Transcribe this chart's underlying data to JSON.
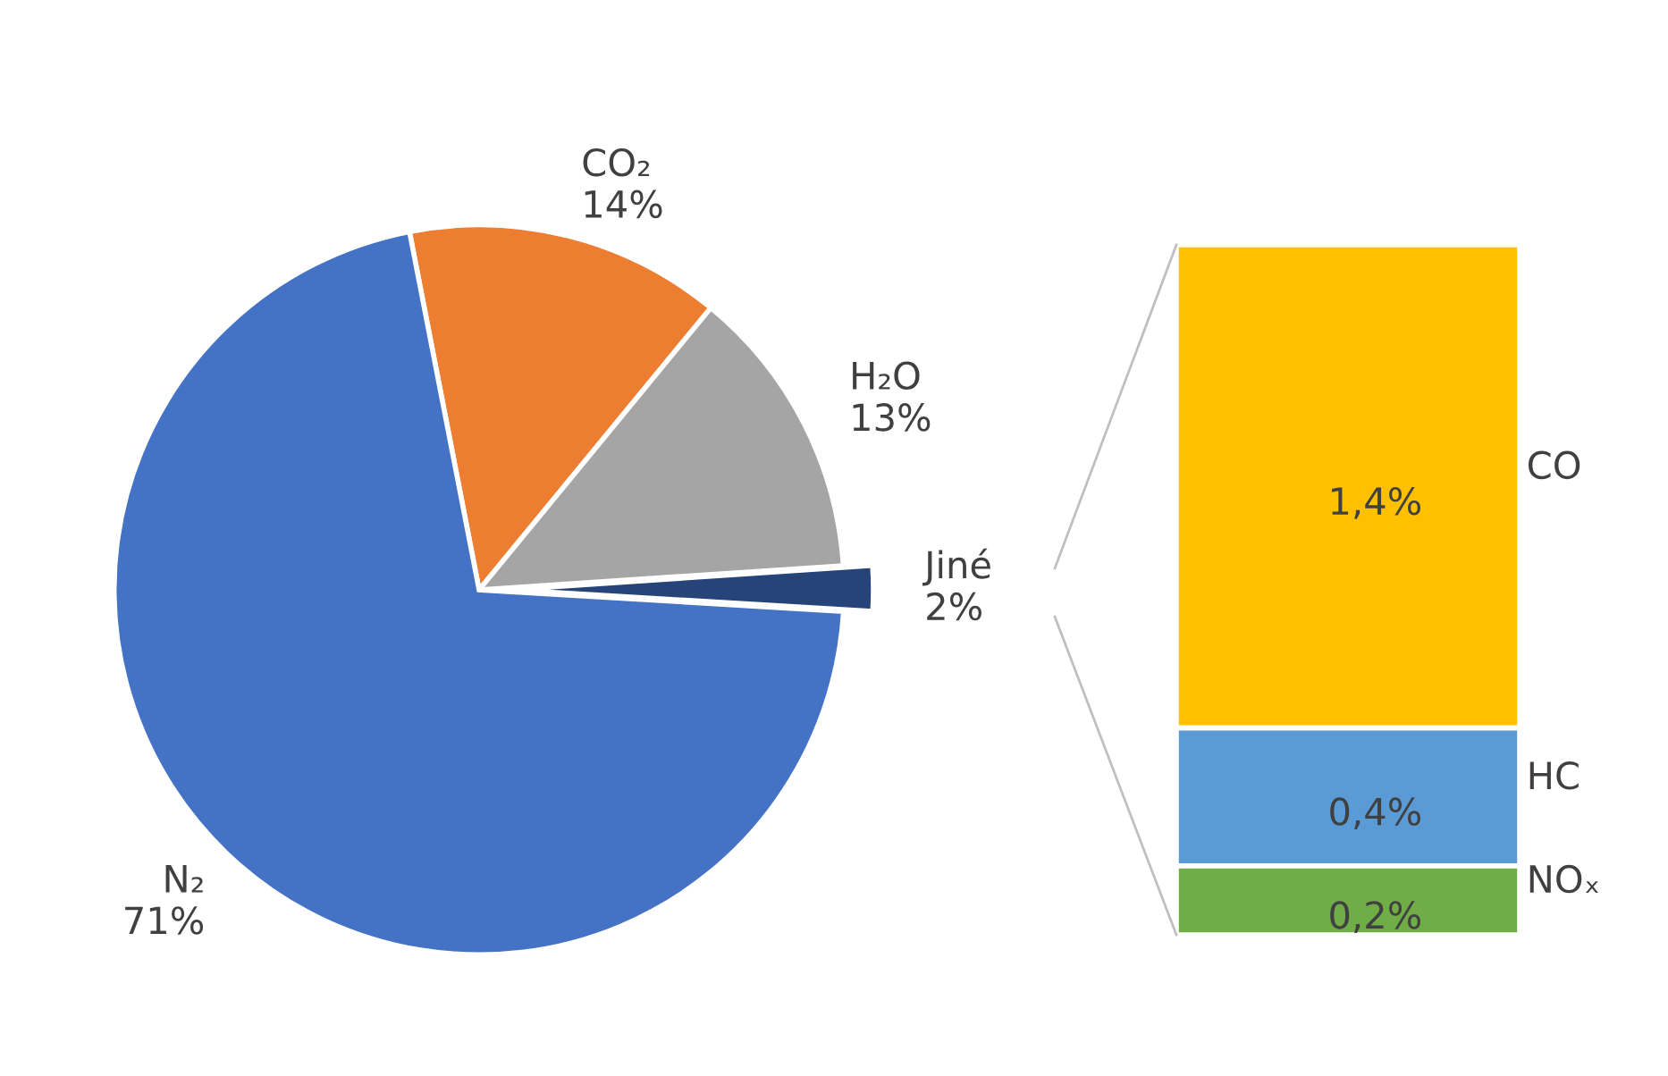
{
  "chart_data": [
    {
      "type": "pie",
      "categories": [
        "CO₂",
        "H₂O",
        "Jiné",
        "N₂"
      ],
      "values": [
        14,
        13,
        2,
        71
      ],
      "colors": [
        "#ed7d31",
        "#a5a5a5",
        "#264478",
        "#4472c4"
      ],
      "value_labels": [
        "14%",
        "13%",
        "2%",
        "71%"
      ]
    },
    {
      "type": "bar",
      "stacked": true,
      "categories": [
        null
      ],
      "series": [
        {
          "name": "NOₓ",
          "color": "#70ad47",
          "values": [
            0.2
          ],
          "value_labels": [
            "0,2%"
          ]
        },
        {
          "name": "HC",
          "color": "#5b9bd5",
          "values": [
            0.4
          ],
          "value_labels": [
            "0,4%"
          ]
        },
        {
          "name": "CO",
          "color": "#ffc000",
          "values": [
            1.4
          ],
          "value_labels": [
            "1,4%"
          ]
        }
      ]
    }
  ]
}
